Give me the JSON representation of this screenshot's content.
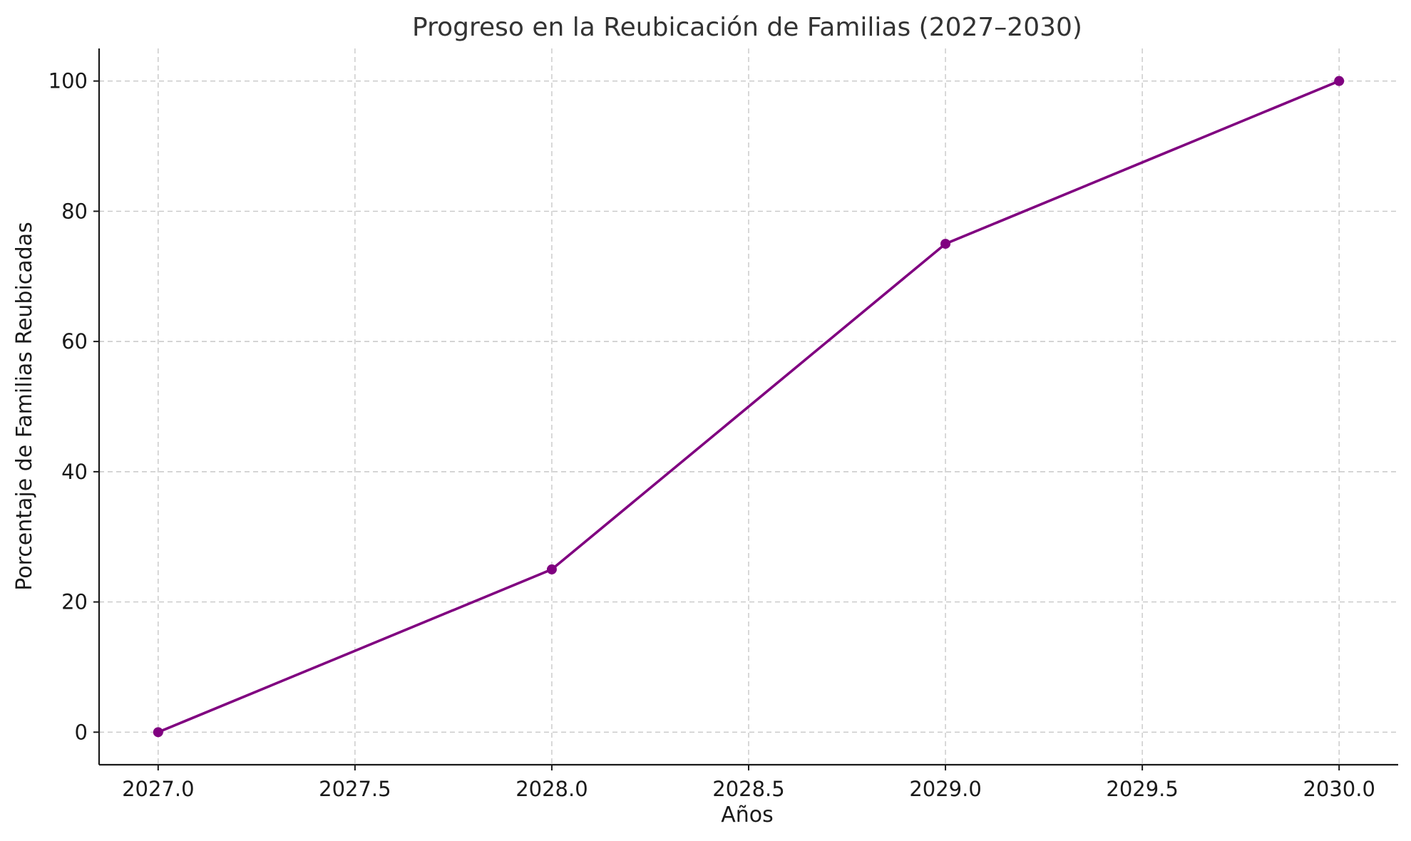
{
  "chart_data": {
    "type": "line",
    "title": "Progreso en la Reubicación de Familias (2027–2030)",
    "xlabel": "Años",
    "ylabel": "Porcentaje de Familias Reubicadas",
    "x": [
      2027,
      2028,
      2029,
      2030
    ],
    "series": [
      {
        "values": [
          0,
          25,
          75,
          100
        ],
        "color": "#800080",
        "marker": "circle"
      }
    ],
    "xlim": [
      2026.85,
      2030.15
    ],
    "ylim": [
      -5,
      105
    ],
    "xticks": [
      2027.0,
      2027.5,
      2028.0,
      2028.5,
      2029.0,
      2029.5,
      2030.0
    ],
    "xtick_labels": [
      "2027.0",
      "2027.5",
      "2028.0",
      "2028.5",
      "2029.0",
      "2029.5",
      "2030.0"
    ],
    "yticks": [
      0,
      20,
      40,
      60,
      80,
      100
    ],
    "ytick_labels": [
      "0",
      "20",
      "40",
      "60",
      "80",
      "100"
    ],
    "grid": true,
    "grid_style": "dashed",
    "grid_color": "#c8c8c8",
    "axis_color": "#1a1a1a",
    "title_color": "#333333",
    "spines": [
      "left",
      "bottom"
    ]
  }
}
